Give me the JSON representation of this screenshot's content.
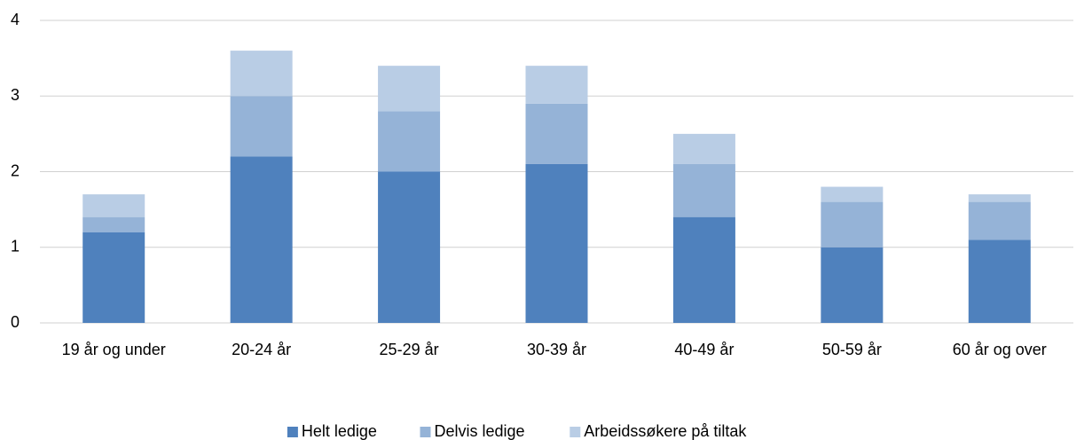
{
  "chart_data": {
    "type": "stacked_bar",
    "categories": [
      "19 år og under",
      "20-24 år",
      "25-29 år",
      "30-39 år",
      "40-49 år",
      "50-59 år",
      "60 år og over"
    ],
    "series": [
      {
        "name": "Helt ledige",
        "color": "#4f81bd",
        "values": [
          1.2,
          2.2,
          2.0,
          2.1,
          1.4,
          1.0,
          1.1
        ]
      },
      {
        "name": "Delvis ledige",
        "color": "#95b3d7",
        "values": [
          0.2,
          0.8,
          0.8,
          0.8,
          0.7,
          0.6,
          0.5
        ]
      },
      {
        "name": "Arbeidssøkere på tiltak",
        "color": "#b9cde5",
        "values": [
          0.3,
          0.6,
          0.6,
          0.5,
          0.4,
          0.2,
          0.1
        ]
      }
    ],
    "ylim": [
      0,
      4
    ],
    "yticks": [
      0,
      1,
      2,
      3,
      4
    ],
    "grid": true,
    "legend": "bottom"
  }
}
